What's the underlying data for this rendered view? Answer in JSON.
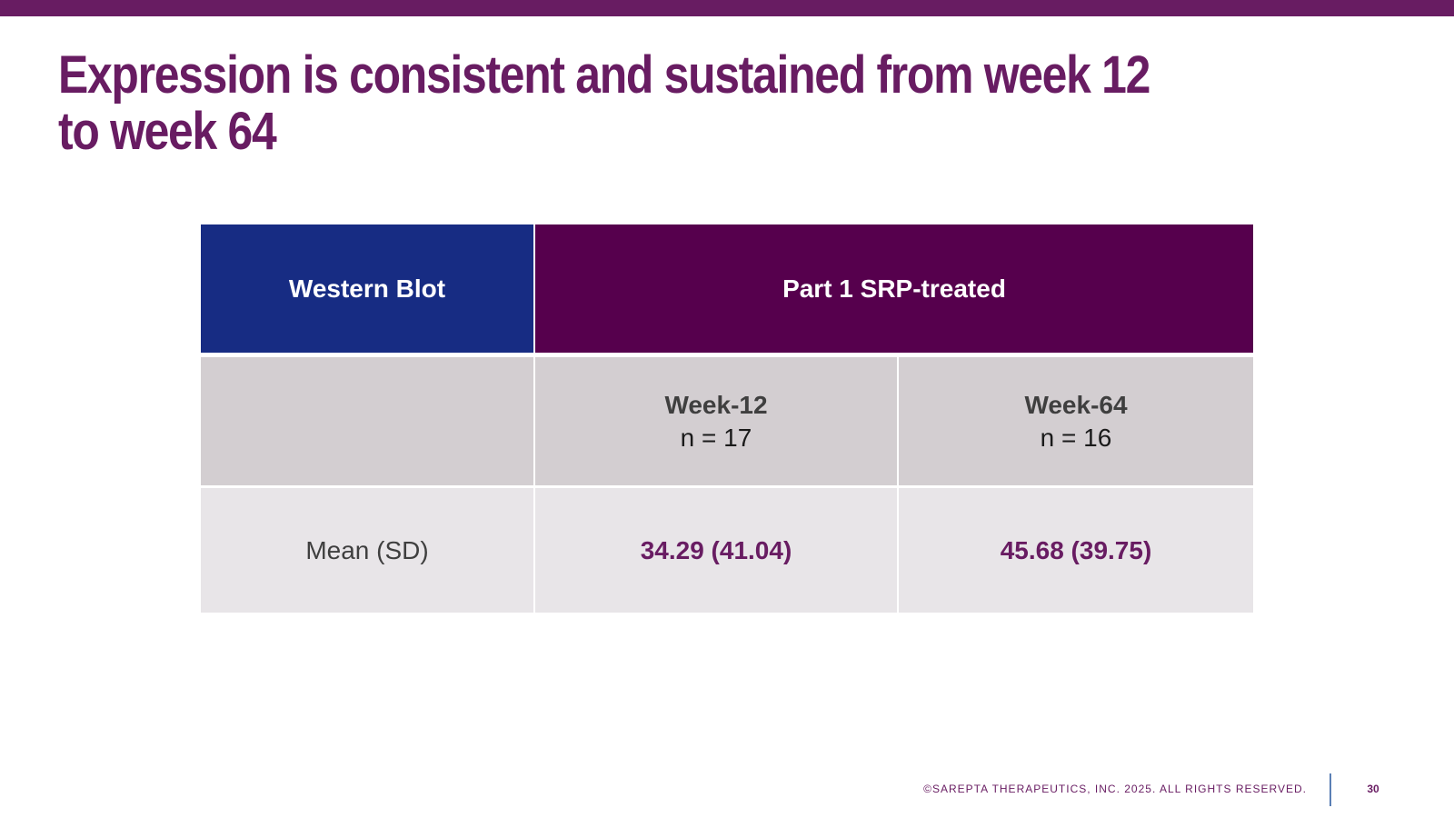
{
  "slide": {
    "title_lines": [
      "Expression is consistent and sustained from week 12",
      "to week 64"
    ],
    "accent_color": "#681c62"
  },
  "table": {
    "header": {
      "left": "Western Blot",
      "right": "Part 1 SRP-treated"
    },
    "columns": [
      {
        "week": "Week-12",
        "n": "n = 17"
      },
      {
        "week": "Week-64",
        "n": "n = 16"
      }
    ],
    "row": {
      "label": "Mean (SD)",
      "values": [
        "34.29 (41.04)",
        "45.68 (39.75)"
      ]
    },
    "colors": {
      "header_blue": "#172c83",
      "header_purple": "#56004d",
      "subheader_bg": "#d3ced1",
      "row_bg": "#e8e5e8"
    }
  },
  "footer": {
    "copyright": "©SAREPTA THERAPEUTICS, INC. 2025.  ALL RIGHTS RESERVED.",
    "page_number": "30"
  }
}
